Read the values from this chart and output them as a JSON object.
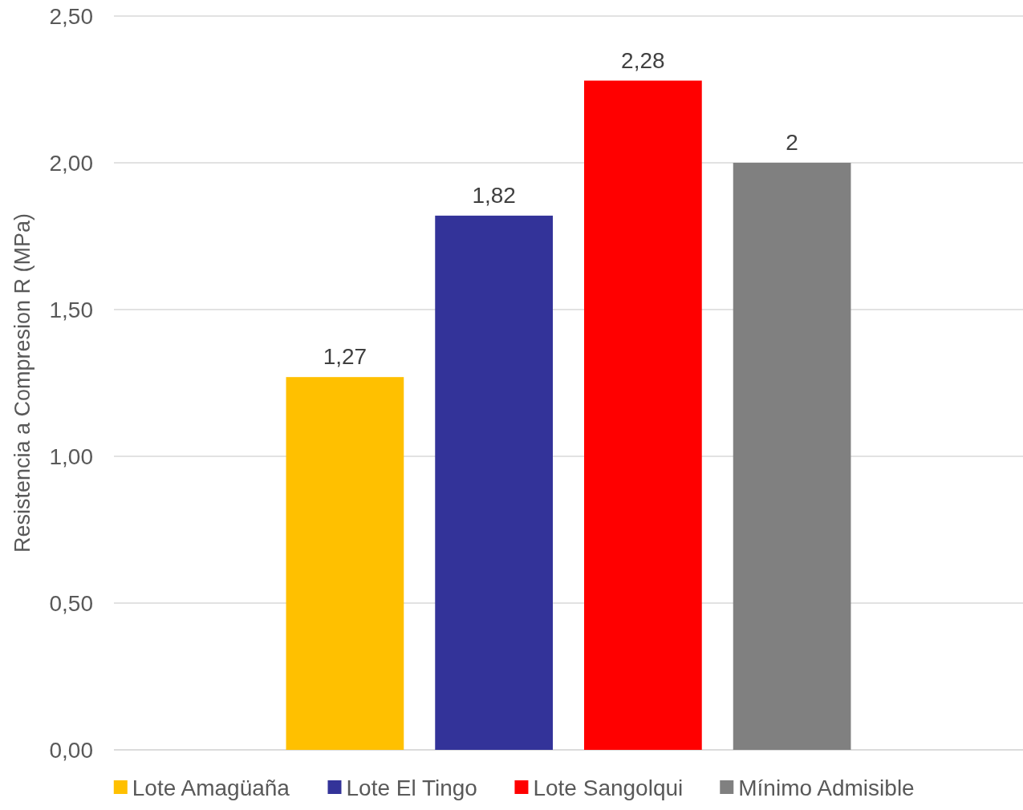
{
  "chart_data": {
    "type": "bar",
    "ylabel": "Resistencia a Compresion R (MPa)",
    "categories": [
      null
    ],
    "series": [
      {
        "name": "Lote Amagüaña",
        "color": "#ffc000",
        "values": [
          1.27
        ],
        "value_labels": [
          "1,27"
        ]
      },
      {
        "name": "Lote El Tingo",
        "color": "#333399",
        "values": [
          1.82
        ],
        "value_labels": [
          "1,82"
        ]
      },
      {
        "name": "Lote Sangolqui",
        "color": "#ff0000",
        "values": [
          2.28
        ],
        "value_labels": [
          "2,28"
        ]
      },
      {
        "name": "Mínimo Admisible",
        "color": "#808080",
        "values": [
          2
        ],
        "value_labels": [
          "2"
        ]
      }
    ],
    "ylim": [
      0,
      2.5
    ],
    "yticks": [
      {
        "value": 0,
        "label": "0,00"
      },
      {
        "value": 0.5,
        "label": "0,50"
      },
      {
        "value": 1,
        "label": "1,00"
      },
      {
        "value": 1.5,
        "label": "1,50"
      },
      {
        "value": 2,
        "label": "2,00"
      },
      {
        "value": 2.5,
        "label": "2,50"
      }
    ],
    "grid": true,
    "legend": "bottom"
  }
}
